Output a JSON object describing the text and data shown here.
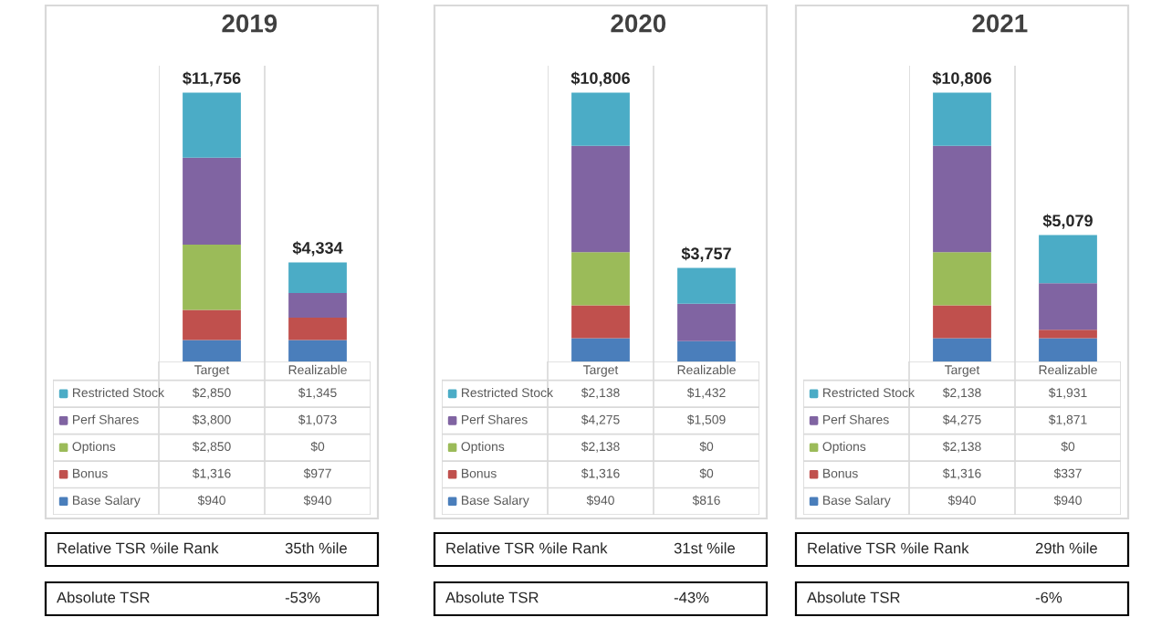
{
  "chart_data": [
    {
      "type": "bar",
      "stacked": true,
      "title": "2019",
      "categories": [
        "Target",
        "Realizable"
      ],
      "legend": "bottom",
      "series": [
        {
          "name": "Base Salary",
          "color": "#4a7ebb",
          "values": [
            940,
            940
          ],
          "value_labels": [
            "$940",
            "$940"
          ]
        },
        {
          "name": "Bonus",
          "color": "#c0504d",
          "values": [
            1316,
            977
          ],
          "value_labels": [
            "$1,316",
            "$977"
          ]
        },
        {
          "name": "Options",
          "color": "#9bbb59",
          "values": [
            2850,
            0
          ],
          "value_labels": [
            "$2,850",
            "$0"
          ]
        },
        {
          "name": "Perf Shares",
          "color": "#8064a2",
          "values": [
            3800,
            1073
          ],
          "value_labels": [
            "$3,800",
            "$1,073"
          ]
        },
        {
          "name": "Restricted Stock",
          "color": "#4bacc6",
          "values": [
            2850,
            1345
          ],
          "value_labels": [
            "$2,850",
            "$1,345"
          ]
        }
      ],
      "totals": [
        "$11,756",
        "$4,334"
      ],
      "annotations": [
        "Relative TSR %ile Rank",
        "35th %ile",
        "Absolute TSR",
        "-53%"
      ]
    },
    {
      "type": "bar",
      "stacked": true,
      "title": "2020",
      "categories": [
        "Target",
        "Realizable"
      ],
      "legend": "bottom",
      "series": [
        {
          "name": "Base Salary",
          "color": "#4a7ebb",
          "values": [
            940,
            816
          ],
          "value_labels": [
            "$940",
            "$816"
          ]
        },
        {
          "name": "Bonus",
          "color": "#c0504d",
          "values": [
            1316,
            0
          ],
          "value_labels": [
            "$1,316",
            "$0"
          ]
        },
        {
          "name": "Options",
          "color": "#9bbb59",
          "values": [
            2138,
            0
          ],
          "value_labels": [
            "$2,138",
            "$0"
          ]
        },
        {
          "name": "Perf Shares",
          "color": "#8064a2",
          "values": [
            4275,
            1509
          ],
          "value_labels": [
            "$4,275",
            "$1,509"
          ]
        },
        {
          "name": "Restricted Stock",
          "color": "#4bacc6",
          "values": [
            2138,
            1432
          ],
          "value_labels": [
            "$2,138",
            "$1,432"
          ]
        }
      ],
      "totals": [
        "$10,806",
        "$3,757"
      ],
      "annotations": [
        "Relative TSR %ile Rank",
        "31st %ile",
        "Absolute TSR",
        "-43%"
      ]
    },
    {
      "type": "bar",
      "stacked": true,
      "title": "2021",
      "categories": [
        "Target",
        "Realizable"
      ],
      "legend": "bottom",
      "series": [
        {
          "name": "Base Salary",
          "color": "#4a7ebb",
          "values": [
            940,
            940
          ],
          "value_labels": [
            "$940",
            "$940"
          ]
        },
        {
          "name": "Bonus",
          "color": "#c0504d",
          "values": [
            1316,
            337
          ],
          "value_labels": [
            "$1,316",
            "$337"
          ]
        },
        {
          "name": "Options",
          "color": "#9bbb59",
          "values": [
            2138,
            0
          ],
          "value_labels": [
            "$2,138",
            "$0"
          ]
        },
        {
          "name": "Perf Shares",
          "color": "#8064a2",
          "values": [
            4275,
            1871
          ],
          "value_labels": [
            "$4,275",
            "$1,871"
          ]
        },
        {
          "name": "Restricted Stock",
          "color": "#4bacc6",
          "values": [
            2138,
            1931
          ],
          "value_labels": [
            "$2,138",
            "$1,931"
          ]
        }
      ],
      "totals": [
        "$10,806",
        "$5,079"
      ],
      "annotations": [
        "Relative TSR %ile Rank",
        "29th %ile",
        "Absolute TSR",
        "-6%"
      ]
    }
  ]
}
